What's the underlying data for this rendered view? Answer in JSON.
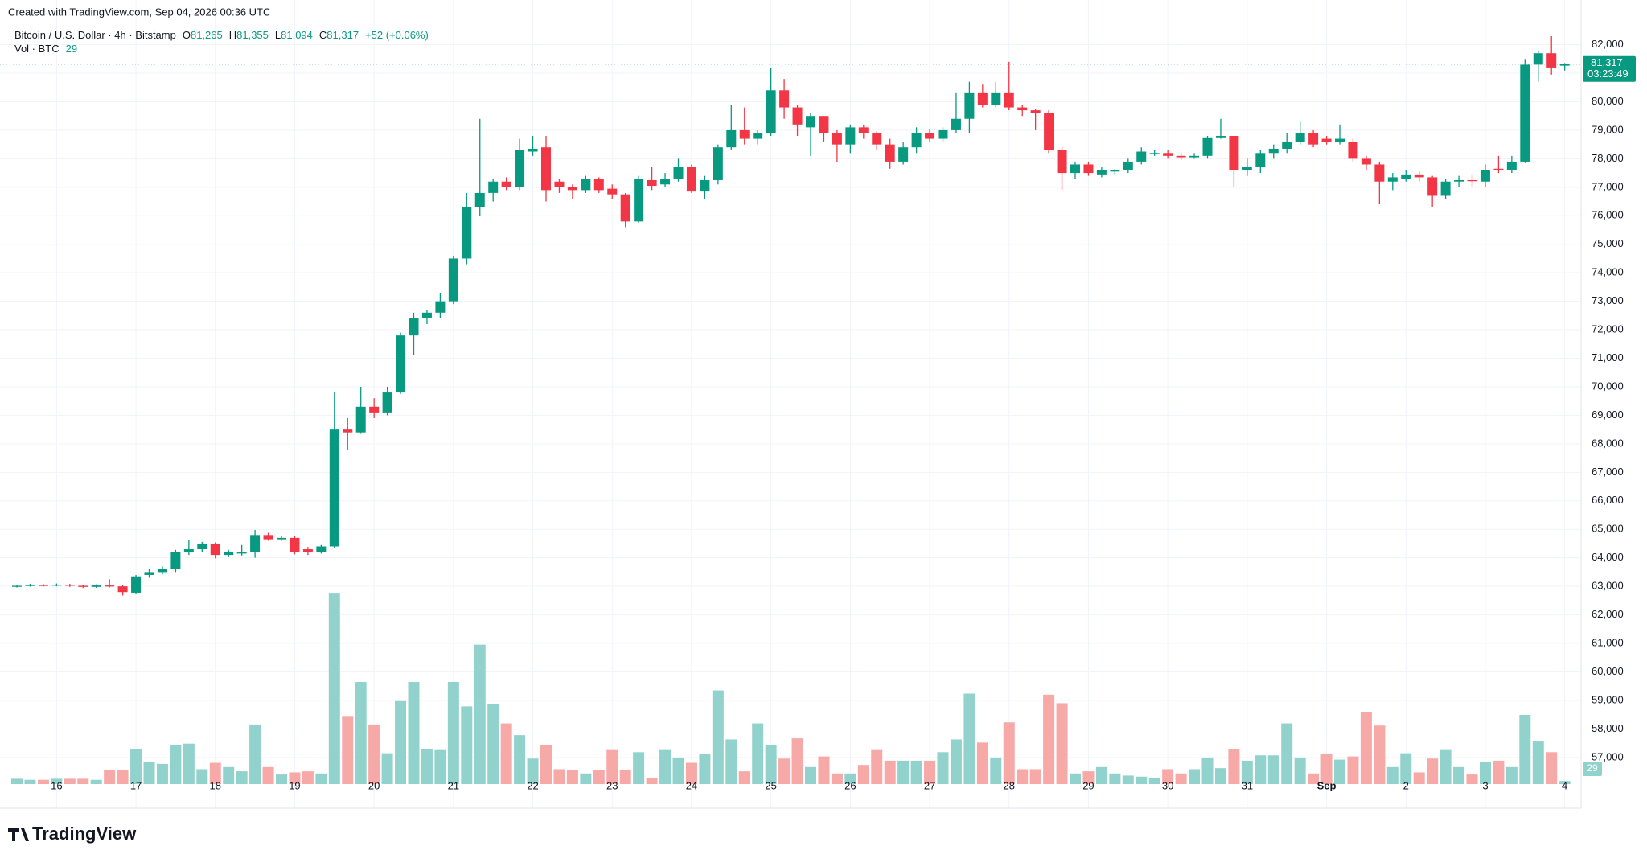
{
  "created": "Created with TradingView.com, Sep 04, 2026 00:36 UTC",
  "brand": "TradingView",
  "chart_data": {
    "type": "candlestick",
    "title": "Bitcoin / U.S. Dollar · 4h · Bitstamp",
    "legend": [
      {
        "key": "O",
        "value": "81,265"
      },
      {
        "key": "H",
        "value": "81,355"
      },
      {
        "key": "L",
        "value": "81,094"
      },
      {
        "key": "C",
        "value": "81,317"
      }
    ],
    "change": "+52 (+0.06%)",
    "volume_title": "Vol · BTC",
    "volume_label": "29",
    "last_price_label": "81,317",
    "countdown": "03:23:49",
    "up_color": "#089981",
    "down_color": "#f23645",
    "up_volume_color": "#92d2cc",
    "down_volume_color": "#f7a9a7",
    "categories": [
      null,
      null,
      null,
      "16",
      null,
      null,
      null,
      null,
      null,
      "17",
      null,
      null,
      null,
      null,
      null,
      "18",
      null,
      null,
      null,
      null,
      null,
      "19",
      null,
      null,
      null,
      null,
      null,
      "20",
      null,
      null,
      null,
      null,
      null,
      "21",
      null,
      null,
      null,
      null,
      null,
      "22",
      null,
      null,
      null,
      null,
      null,
      "23",
      null,
      null,
      null,
      null,
      null,
      "24",
      null,
      null,
      null,
      null,
      null,
      "25",
      null,
      null,
      null,
      null,
      null,
      "26",
      null,
      null,
      null,
      null,
      null,
      "27",
      null,
      null,
      null,
      null,
      null,
      "28",
      null,
      null,
      null,
      null,
      null,
      "29",
      null,
      null,
      null,
      null,
      null,
      "30",
      null,
      null,
      null,
      null,
      null,
      "31",
      null,
      null,
      null,
      null,
      null,
      "Sep",
      null,
      null,
      null,
      null,
      null,
      "2",
      null,
      null,
      null,
      null,
      null,
      "3",
      null,
      null,
      null,
      null,
      null,
      "4"
    ],
    "open": [
      63000,
      63020,
      63050,
      63030,
      63060,
      63020,
      62980,
      63030,
      63000,
      62780,
      63400,
      63500,
      63600,
      64200,
      64300,
      64500,
      64100,
      64150,
      64200,
      64800,
      64650,
      64700,
      64300,
      64200,
      64400,
      68500,
      68400,
      69300,
      69100,
      69800,
      71800,
      72400,
      72600,
      73000,
      74500,
      76300,
      76800,
      77200,
      77000,
      78250,
      78400,
      77200,
      77000,
      76900,
      77300,
      76950,
      76750,
      75800,
      77250,
      77100,
      77300,
      77700,
      76850,
      77250,
      78400,
      79000,
      78700,
      78900,
      80400,
      79800,
      79100,
      79500,
      78900,
      78500,
      79100,
      78900,
      78500,
      77900,
      78400,
      78900,
      78700,
      79000,
      79400,
      80300,
      79900,
      80300,
      79800,
      79700,
      79600,
      78300,
      77500,
      77800,
      77450,
      77550,
      77600,
      77900,
      78150,
      78200,
      78100,
      78050,
      78100,
      78750,
      78800,
      77600,
      77700,
      78200,
      78350,
      78600,
      78900,
      78700,
      78600,
      78600,
      78000,
      77800,
      77200,
      77300,
      77450,
      77350,
      76700,
      77200,
      77250,
      77200,
      77650,
      77600,
      77900,
      81300,
      81700,
      81265
    ],
    "high": [
      63060,
      63090,
      63080,
      63100,
      63090,
      63050,
      63070,
      63250,
      63050,
      63400,
      63620,
      63700,
      64280,
      64620,
      64560,
      64540,
      64280,
      64450,
      64980,
      64880,
      64760,
      64760,
      64380,
      64450,
      69800,
      68900,
      70000,
      69600,
      70000,
      71900,
      72600,
      72700,
      73300,
      74600,
      76800,
      79400,
      77300,
      77350,
      78700,
      78800,
      78800,
      77300,
      77100,
      77400,
      77350,
      77100,
      76800,
      77400,
      77700,
      77500,
      78000,
      77800,
      77400,
      78500,
      79900,
      79800,
      79000,
      81200,
      80800,
      79900,
      79600,
      79500,
      79000,
      79200,
      79200,
      78950,
      78700,
      78600,
      79100,
      79050,
      79100,
      80300,
      80700,
      80600,
      80700,
      81400,
      79900,
      79750,
      79700,
      78400,
      77900,
      77900,
      77700,
      77650,
      78000,
      78400,
      78300,
      78300,
      78200,
      78200,
      78800,
      79400,
      78800,
      78000,
      78300,
      78500,
      78900,
      79300,
      79000,
      78800,
      79200,
      78700,
      78100,
      77900,
      77500,
      77600,
      77550,
      77400,
      77300,
      77400,
      77450,
      77800,
      78100,
      78100,
      81500,
      81800,
      82300,
      81355
    ],
    "low": [
      62960,
      62990,
      62990,
      63000,
      62980,
      62940,
      62950,
      62960,
      62680,
      62720,
      63300,
      63420,
      63500,
      64100,
      64200,
      63980,
      64020,
      64080,
      64000,
      64600,
      64600,
      64120,
      64100,
      64150,
      64350,
      67800,
      68350,
      68900,
      69000,
      69750,
      71100,
      72200,
      72400,
      72900,
      74300,
      76000,
      76500,
      76900,
      76900,
      78100,
      76500,
      76800,
      76600,
      76800,
      76800,
      76600,
      75600,
      75750,
      76900,
      77000,
      77200,
      76800,
      76600,
      77100,
      78300,
      78500,
      78500,
      78800,
      79400,
      78800,
      78100,
      78600,
      77900,
      78200,
      78700,
      78300,
      77650,
      77800,
      78200,
      78600,
      78600,
      78900,
      78900,
      79800,
      79800,
      79700,
      79500,
      79000,
      78200,
      76900,
      77300,
      77400,
      77350,
      77450,
      77500,
      77800,
      78100,
      78000,
      77950,
      78000,
      78000,
      78700,
      77000,
      77400,
      77500,
      78000,
      78200,
      78500,
      78400,
      78500,
      78500,
      77900,
      77600,
      76400,
      76900,
      77200,
      77200,
      76300,
      76600,
      77000,
      77000,
      77000,
      77500,
      77500,
      77850,
      80700,
      80950,
      81094
    ],
    "close": [
      63020,
      63050,
      63030,
      63060,
      63020,
      62980,
      63030,
      63000,
      62800,
      63350,
      63500,
      63600,
      64200,
      64300,
      64500,
      64100,
      64200,
      64200,
      64800,
      64650,
      64700,
      64200,
      64200,
      64400,
      68500,
      68400,
      69300,
      69100,
      69800,
      71800,
      72400,
      72600,
      73000,
      74500,
      76300,
      76800,
      77200,
      77000,
      78300,
      78350,
      76900,
      77000,
      76900,
      77300,
      76900,
      76750,
      75800,
      77300,
      77050,
      77300,
      77700,
      76850,
      77250,
      78400,
      79000,
      78700,
      78900,
      80400,
      79800,
      79200,
      79500,
      78900,
      78500,
      79100,
      78900,
      78500,
      77900,
      78400,
      78900,
      78700,
      79000,
      79400,
      80300,
      79900,
      80300,
      79800,
      79700,
      79600,
      78300,
      77500,
      77800,
      77500,
      77600,
      77600,
      77900,
      78250,
      78200,
      78100,
      78050,
      78100,
      78750,
      78800,
      77600,
      77700,
      78200,
      78350,
      78600,
      78900,
      78500,
      78600,
      78700,
      78000,
      77800,
      77200,
      77350,
      77450,
      77350,
      76700,
      77200,
      77250,
      77240,
      77600,
      77600,
      77900,
      81300,
      81700,
      81200,
      81317
    ],
    "volume": [
      50,
      40,
      40,
      50,
      50,
      50,
      40,
      130,
      130,
      330,
      210,
      190,
      370,
      380,
      140,
      200,
      160,
      120,
      560,
      160,
      90,
      110,
      120,
      100,
      1790,
      640,
      960,
      560,
      290,
      780,
      960,
      330,
      320,
      960,
      730,
      1310,
      750,
      570,
      460,
      240,
      370,
      140,
      130,
      100,
      130,
      320,
      130,
      300,
      60,
      320,
      250,
      200,
      280,
      880,
      420,
      120,
      570,
      370,
      240,
      430,
      160,
      260,
      100,
      100,
      180,
      320,
      220,
      220,
      220,
      220,
      300,
      420,
      850,
      390,
      250,
      580,
      140,
      140,
      840,
      760,
      100,
      120,
      160,
      100,
      80,
      70,
      60,
      140,
      100,
      140,
      250,
      150,
      330,
      220,
      270,
      270,
      570,
      250,
      100,
      280,
      230,
      260,
      680,
      550,
      160,
      290,
      110,
      240,
      320,
      160,
      90,
      210,
      220,
      160,
      650,
      400,
      300,
      29
    ],
    "ylim": [
      55500,
      83500
    ],
    "vlim": [
      0,
      3000
    ],
    "yticks": [
      {
        "value": 57000,
        "label": "57,000"
      },
      {
        "value": 58000,
        "label": "58,000"
      },
      {
        "value": 59000,
        "label": "59,000"
      },
      {
        "value": 60000,
        "label": "60,000"
      },
      {
        "value": 61000,
        "label": "61,000"
      },
      {
        "value": 62000,
        "label": "62,000"
      },
      {
        "value": 63000,
        "label": "63,000"
      },
      {
        "value": 64000,
        "label": "64,000"
      },
      {
        "value": 65000,
        "label": "65,000"
      },
      {
        "value": 66000,
        "label": "66,000"
      },
      {
        "value": 67000,
        "label": "67,000"
      },
      {
        "value": 68000,
        "label": "68,000"
      },
      {
        "value": 69000,
        "label": "69,000"
      },
      {
        "value": 70000,
        "label": "70,000"
      },
      {
        "value": 71000,
        "label": "71,000"
      },
      {
        "value": 72000,
        "label": "72,000"
      },
      {
        "value": 73000,
        "label": "73,000"
      },
      {
        "value": 74000,
        "label": "74,000"
      },
      {
        "value": 75000,
        "label": "75,000"
      },
      {
        "value": 76000,
        "label": "76,000"
      },
      {
        "value": 77000,
        "label": "77,000"
      },
      {
        "value": 78000,
        "label": "78,000"
      },
      {
        "value": 79000,
        "label": "79,000"
      },
      {
        "value": 80000,
        "label": "80,000"
      },
      {
        "value": 81000,
        "label": "81,000"
      },
      {
        "value": 82000,
        "label": "82,000"
      }
    ],
    "grid": true
  }
}
